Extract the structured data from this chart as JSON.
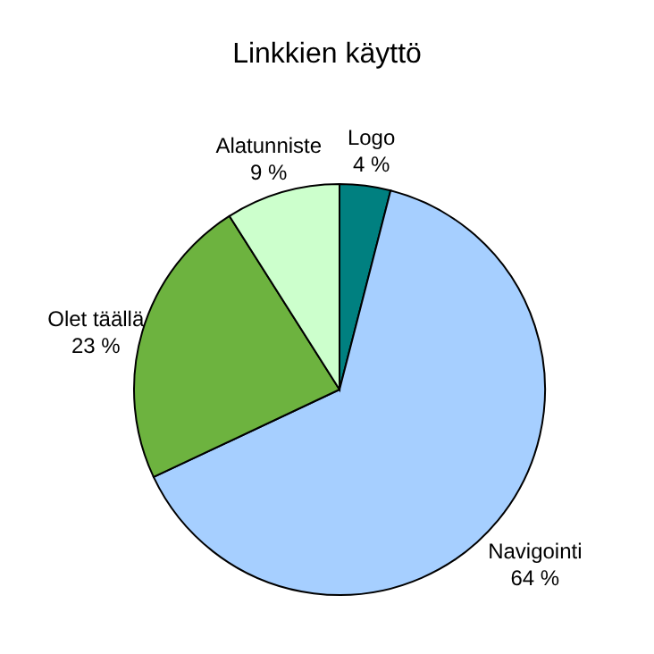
{
  "chart_data": {
    "type": "pie",
    "title": "Linkkien käyttö",
    "categories": [
      "Logo",
      "Navigointi",
      "Olet täällä",
      "Alatunniste"
    ],
    "values": [
      4,
      64,
      23,
      9
    ],
    "colors": [
      "#008080",
      "#a6cfff",
      "#6db33f",
      "#ccffcc"
    ],
    "value_labels": [
      "4 %",
      "64 %",
      "23 %",
      "9 %"
    ]
  }
}
